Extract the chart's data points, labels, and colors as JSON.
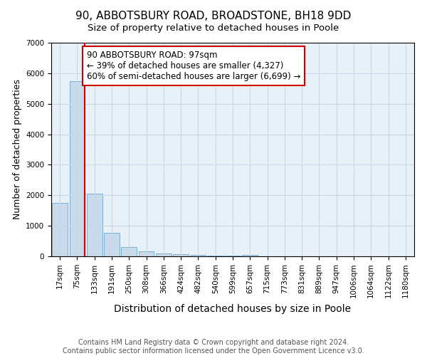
{
  "title": "90, ABBOTSBURY ROAD, BROADSTONE, BH18 9DD",
  "subtitle": "Size of property relative to detached houses in Poole",
  "xlabel": "Distribution of detached houses by size in Poole",
  "ylabel": "Number of detached properties",
  "categories": [
    "17sqm",
    "75sqm",
    "133sqm",
    "191sqm",
    "250sqm",
    "308sqm",
    "366sqm",
    "424sqm",
    "482sqm",
    "540sqm",
    "599sqm",
    "657sqm",
    "715sqm",
    "773sqm",
    "831sqm",
    "889sqm",
    "947sqm",
    "1006sqm",
    "1064sqm",
    "1122sqm",
    "1180sqm"
  ],
  "values": [
    1750,
    5750,
    2050,
    775,
    300,
    175,
    100,
    65,
    50,
    30,
    20,
    55,
    0,
    0,
    0,
    0,
    0,
    0,
    0,
    0,
    0
  ],
  "bar_color": "#c9daea",
  "bar_edge_color": "#7bafd4",
  "vline_x": 1.45,
  "vline_color": "#cc0000",
  "annotation_text": "90 ABBOTSBURY ROAD: 97sqm\n← 39% of detached houses are smaller (4,327)\n60% of semi-detached houses are larger (6,699) →",
  "annotation_box_color": "#ffffff",
  "annotation_box_edge_color": "#cc0000",
  "ylim": [
    0,
    7000
  ],
  "yticks": [
    0,
    1000,
    2000,
    3000,
    4000,
    5000,
    6000,
    7000
  ],
  "grid_color": "#c8d8e8",
  "ax_background_color": "#e8f0f8",
  "background_color": "#ffffff",
  "footer": "Contains HM Land Registry data © Crown copyright and database right 2024.\nContains public sector information licensed under the Open Government Licence v3.0.",
  "title_fontsize": 11,
  "subtitle_fontsize": 9.5,
  "xlabel_fontsize": 10,
  "ylabel_fontsize": 9,
  "tick_fontsize": 7.5,
  "annotation_fontsize": 8.5,
  "footer_fontsize": 7
}
